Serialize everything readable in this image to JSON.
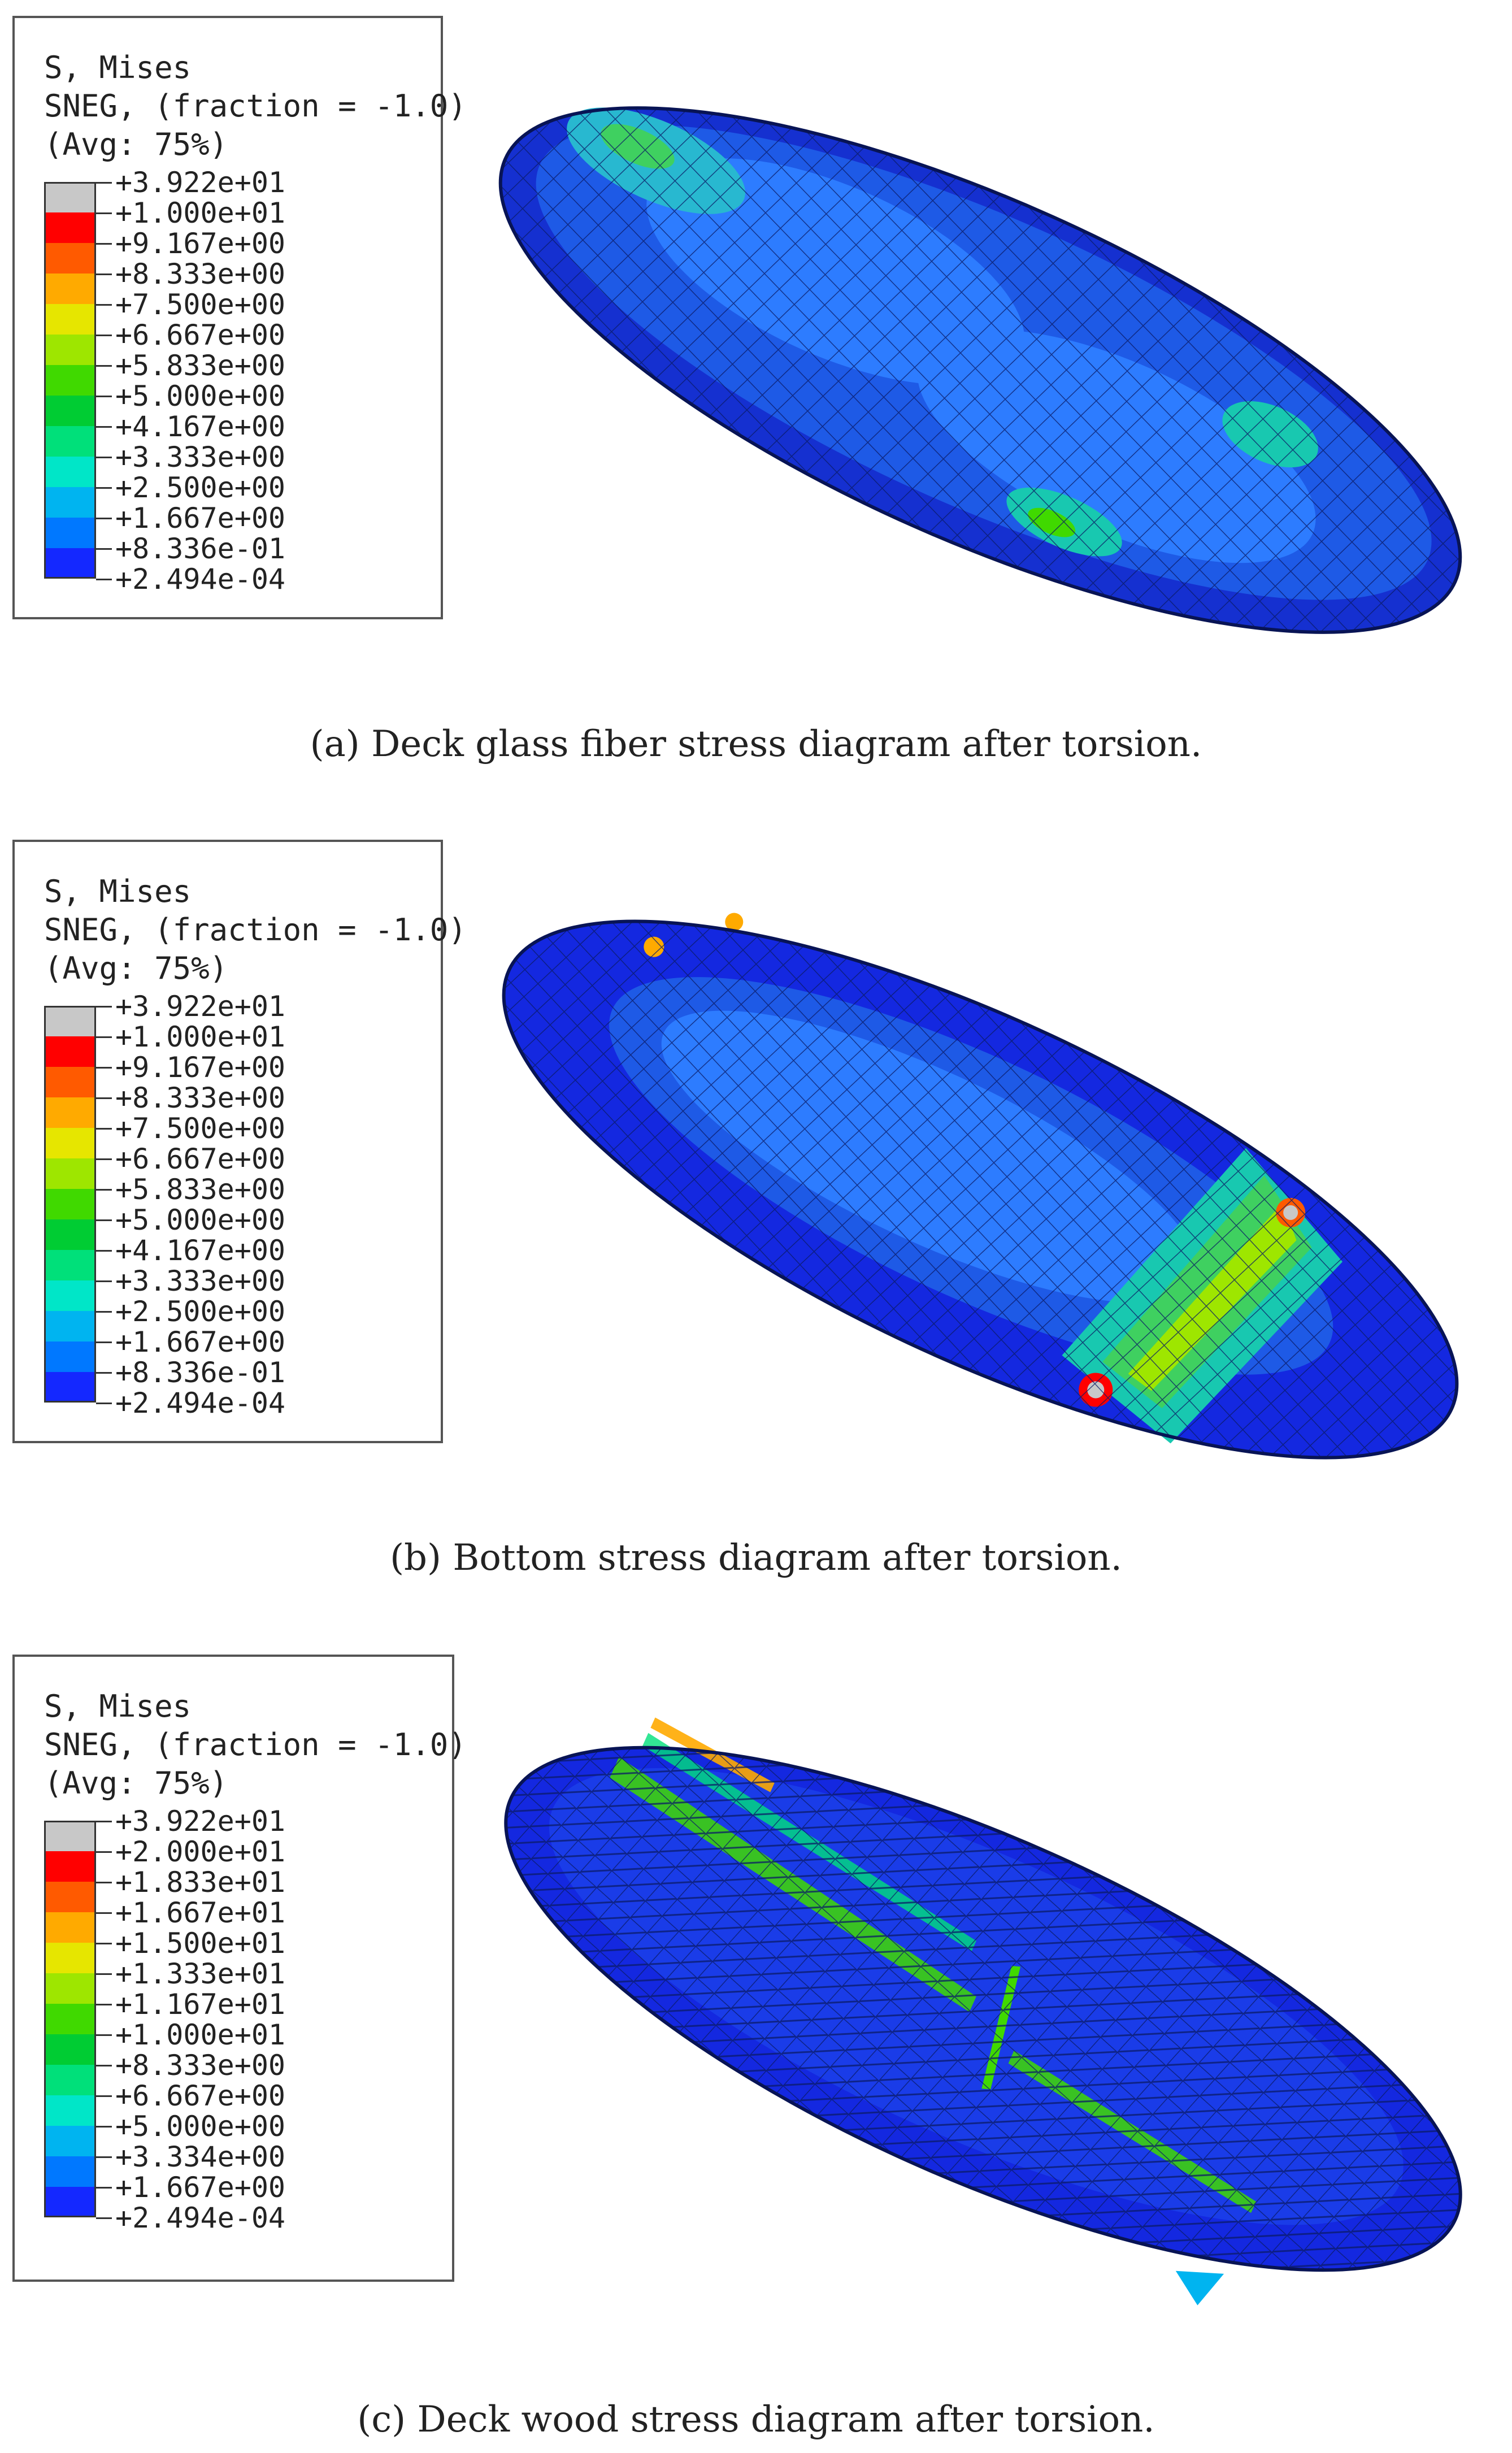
{
  "legend_colors": [
    "#c8c8c8",
    "#ff0000",
    "#ff5a00",
    "#ffaa00",
    "#e6e600",
    "#9ee600",
    "#40d900",
    "#00cc33",
    "#00e07a",
    "#00e6c8",
    "#00b4f0",
    "#0078ff",
    "#1428ff"
  ],
  "panels": [
    {
      "id": "a",
      "legend": {
        "title_lines": [
          "S, Mises",
          "SNEG, (fraction = -1.0)",
          "(Avg: 75%)"
        ],
        "labels": [
          "+3.922e+01",
          "+1.000e+01",
          "+9.167e+00",
          "+8.333e+00",
          "+7.500e+00",
          "+6.667e+00",
          "+5.833e+00",
          "+5.000e+00",
          "+4.167e+00",
          "+3.333e+00",
          "+2.500e+00",
          "+1.667e+00",
          "+8.336e-01",
          "+2.494e-04"
        ]
      },
      "caption": "(a) Deck glass fiber stress diagram after torsion."
    },
    {
      "id": "b",
      "legend": {
        "title_lines": [
          "S, Mises",
          "SNEG, (fraction = -1.0)",
          "(Avg: 75%)"
        ],
        "labels": [
          "+3.922e+01",
          "+1.000e+01",
          "+9.167e+00",
          "+8.333e+00",
          "+7.500e+00",
          "+6.667e+00",
          "+5.833e+00",
          "+5.000e+00",
          "+4.167e+00",
          "+3.333e+00",
          "+2.500e+00",
          "+1.667e+00",
          "+8.336e-01",
          "+2.494e-04"
        ]
      },
      "caption": "(b) Bottom stress diagram after torsion."
    },
    {
      "id": "c",
      "legend": {
        "title_lines": [
          "S, Mises",
          "SNEG, (fraction = -1.0)",
          "(Avg: 75%)"
        ],
        "labels": [
          "+3.922e+01",
          "+2.000e+01",
          "+1.833e+01",
          "+1.667e+01",
          "+1.500e+01",
          "+1.333e+01",
          "+1.167e+01",
          "+1.000e+01",
          "+8.333e+00",
          "+6.667e+00",
          "+5.000e+00",
          "+3.334e+00",
          "+1.667e+00",
          "+2.494e-04"
        ]
      },
      "caption": "(c) Deck wood stress diagram after torsion."
    }
  ]
}
